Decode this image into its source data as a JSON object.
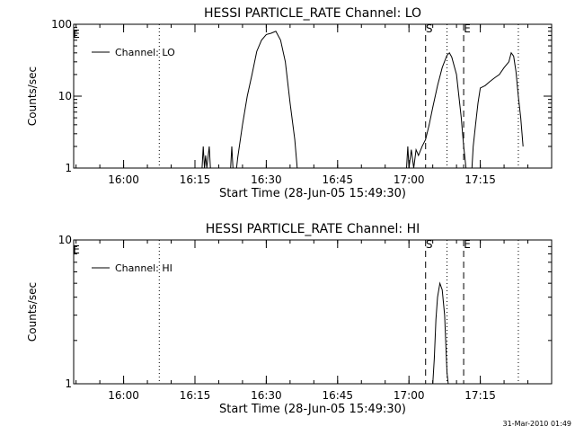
{
  "footer": {
    "timestamp": "31-Mar-2010 01:49"
  },
  "chart_data": [
    {
      "type": "line",
      "title": "HESSI PARTICLE_RATE Channel: LO",
      "xlabel": "Start Time (28-Jun-05 15:49:30)",
      "ylabel": "Counts/sec",
      "y_scale": "log",
      "xlim": [
        "15:49:30",
        "17:30:00"
      ],
      "ylim": [
        1,
        100
      ],
      "x_ticks": [
        "16:00",
        "16:15",
        "16:30",
        "16:45",
        "17:00",
        "17:15"
      ],
      "y_ticks": [
        "1",
        "10",
        "100"
      ],
      "legend": {
        "position": "top-left",
        "entries": [
          "Channel: LO"
        ]
      },
      "markers": [
        {
          "label": "E",
          "x": "15:49:30",
          "style": "dotted"
        },
        {
          "label": "",
          "x": "16:07:30",
          "style": "dotted"
        },
        {
          "label": "S",
          "x": "17:03:30",
          "style": "dashed"
        },
        {
          "label": "E",
          "x": "17:11:30",
          "style": "dashed"
        },
        {
          "label": "",
          "x": "17:08:00",
          "style": "dotted"
        },
        {
          "label": "",
          "x": "17:23:00",
          "style": "dotted"
        }
      ],
      "series": [
        {
          "name": "Channel: LO",
          "segments": [
            [
              [
                "16:16:30",
                1
              ],
              [
                "16:16:45",
                2
              ],
              [
                "16:17:00",
                1
              ],
              [
                "16:17:15",
                1.5
              ],
              [
                "16:17:30",
                1
              ],
              [
                "16:18:00",
                2
              ],
              [
                "16:18:15",
                1
              ]
            ],
            [
              [
                "16:22:30",
                1
              ],
              [
                "16:22:45",
                2
              ],
              [
                "16:23:00",
                1
              ]
            ],
            [
              [
                "16:23:45",
                1
              ],
              [
                "16:24:00",
                1.4
              ],
              [
                "16:25:00",
                4
              ],
              [
                "16:26:00",
                10
              ],
              [
                "16:27:00",
                20
              ],
              [
                "16:28:00",
                42
              ],
              [
                "16:29:00",
                60
              ],
              [
                "16:30:00",
                72
              ],
              [
                "16:31:00",
                75
              ],
              [
                "16:32:00",
                80
              ],
              [
                "16:33:00",
                60
              ],
              [
                "16:34:00",
                30
              ],
              [
                "16:35:00",
                8
              ],
              [
                "16:36:00",
                2.5
              ],
              [
                "16:36:30",
                1
              ]
            ],
            [
              [
                "16:59:30",
                1
              ],
              [
                "16:59:45",
                2
              ],
              [
                "17:00:00",
                1
              ],
              [
                "17:00:30",
                1.8
              ],
              [
                "17:01:00",
                1
              ],
              [
                "17:01:30",
                1.8
              ],
              [
                "17:02:00",
                1.5
              ],
              [
                "17:02:45",
                2
              ],
              [
                "17:03:30",
                2.5
              ],
              [
                "17:04:15",
                4
              ],
              [
                "17:05:00",
                7
              ],
              [
                "17:06:00",
                14
              ],
              [
                "17:07:00",
                25
              ],
              [
                "17:08:00",
                37
              ],
              [
                "17:08:30",
                40
              ],
              [
                "17:09:00",
                35
              ],
              [
                "17:10:00",
                20
              ],
              [
                "17:11:00",
                5
              ],
              [
                "17:11:30",
                2
              ],
              [
                "17:12:00",
                1
              ]
            ],
            [
              [
                "17:13:15",
                1
              ],
              [
                "17:13:30",
                2
              ],
              [
                "17:14:00",
                4
              ],
              [
                "17:14:30",
                8
              ],
              [
                "17:15:00",
                13
              ],
              [
                "17:16:00",
                14
              ],
              [
                "17:17:00",
                16
              ],
              [
                "17:18:00",
                18
              ],
              [
                "17:19:00",
                20
              ],
              [
                "17:20:00",
                25
              ],
              [
                "17:21:00",
                30
              ],
              [
                "17:21:30",
                40
              ],
              [
                "17:22:00",
                36
              ],
              [
                "17:22:30",
                22
              ],
              [
                "17:23:00",
                10
              ],
              [
                "17:23:30",
                5
              ],
              [
                "17:24:00",
                2
              ]
            ]
          ]
        }
      ]
    },
    {
      "type": "line",
      "title": "HESSI PARTICLE_RATE Channel: HI",
      "xlabel": "Start Time (28-Jun-05 15:49:30)",
      "ylabel": "Counts/sec",
      "y_scale": "log",
      "xlim": [
        "15:49:30",
        "17:30:00"
      ],
      "ylim": [
        1,
        10
      ],
      "x_ticks": [
        "16:00",
        "16:15",
        "16:30",
        "16:45",
        "17:00",
        "17:15"
      ],
      "y_ticks": [
        "1",
        "10"
      ],
      "legend": {
        "position": "top-left",
        "entries": [
          "Channel: HI"
        ]
      },
      "markers": [
        {
          "label": "E",
          "x": "15:49:30",
          "style": "dotted"
        },
        {
          "label": "",
          "x": "16:07:30",
          "style": "dotted"
        },
        {
          "label": "S",
          "x": "17:03:30",
          "style": "dashed"
        },
        {
          "label": "E",
          "x": "17:11:30",
          "style": "dashed"
        },
        {
          "label": "",
          "x": "17:08:00",
          "style": "dotted"
        },
        {
          "label": "",
          "x": "17:23:00",
          "style": "dotted"
        }
      ],
      "series": [
        {
          "name": "Channel: HI",
          "segments": [
            [
              [
                "17:05:00",
                1
              ],
              [
                "17:05:20",
                1.5
              ],
              [
                "17:05:40",
                2.8
              ],
              [
                "17:06:00",
                4
              ],
              [
                "17:06:30",
                5
              ],
              [
                "17:07:00",
                4.5
              ],
              [
                "17:07:30",
                3
              ],
              [
                "17:08:00",
                1.2
              ],
              [
                "17:08:15",
                1
              ]
            ]
          ]
        }
      ]
    }
  ]
}
